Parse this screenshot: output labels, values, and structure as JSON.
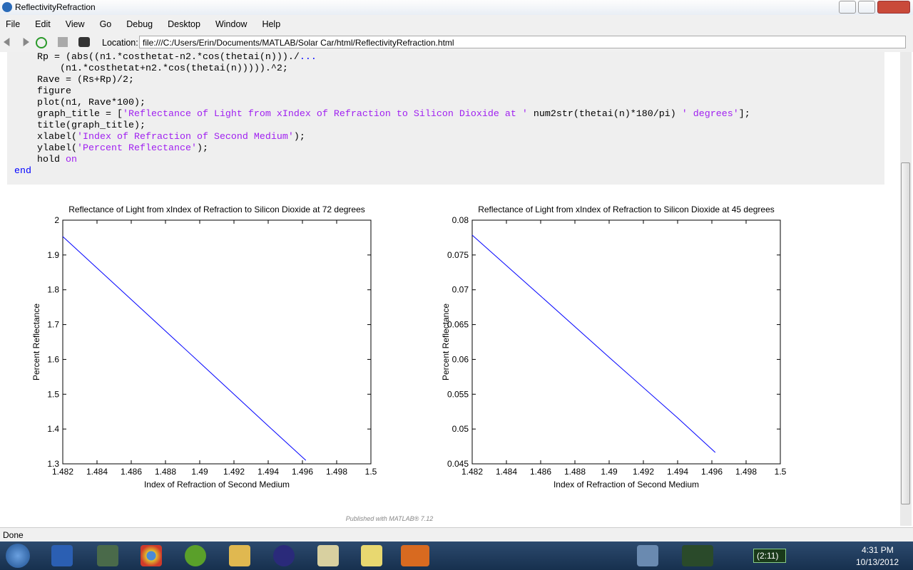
{
  "window": {
    "title": "ReflectivityRefraction"
  },
  "menu": [
    "File",
    "Edit",
    "View",
    "Go",
    "Debug",
    "Desktop",
    "Window",
    "Help"
  ],
  "toolbar": {
    "location_label": "Location:",
    "url": "file:///C:/Users/Erin/Documents/MATLAB/Solar Car/html/ReflectivityRefraction.html"
  },
  "code": [
    [
      {
        "text": "    Rp = (abs((n1.*costhetat-n2.*cos(thetai(n)))./"
      },
      {
        "text": "...",
        "color": "#0000ff"
      }
    ],
    [
      {
        "text": "        (n1.*costhetat+n2.*cos(thetai(n))))).^2;"
      }
    ],
    [
      {
        "text": "    Rave = (Rs+Rp)/2;"
      }
    ],
    [
      {
        "text": "    figure"
      }
    ],
    [
      {
        "text": "    plot(n1, Rave*100);"
      }
    ],
    [
      {
        "text": "    graph_title = ["
      },
      {
        "text": "'Reflectance of Light from xIndex of Refraction to Silicon Dioxide at '",
        "color": "#a020f0"
      },
      {
        "text": " num2str(thetai(n)*180/pi) "
      },
      {
        "text": "' degrees'",
        "color": "#a020f0"
      },
      {
        "text": "];"
      }
    ],
    [
      {
        "text": "    title(graph_title);"
      }
    ],
    [
      {
        "text": "    xlabel("
      },
      {
        "text": "'Index of Refraction of Second Medium'",
        "color": "#a020f0"
      },
      {
        "text": ");"
      }
    ],
    [
      {
        "text": "    ylabel("
      },
      {
        "text": "'Percent Reflectance'",
        "color": "#a020f0"
      },
      {
        "text": ");"
      }
    ],
    [
      {
        "text": "    hold "
      },
      {
        "text": "on",
        "color": "#a020f0"
      }
    ],
    [
      {
        "text": "end",
        "color": "#0000ff"
      }
    ]
  ],
  "chart_data": [
    {
      "type": "line",
      "title": "Reflectance of Light from xIndex of Refraction to Silicon Dioxide at 72 degrees",
      "x_label": "Index of Refraction of Second Medium",
      "y_label": "Percent Reflectance",
      "x": [
        1.482,
        1.486,
        1.49,
        1.494,
        1.4962
      ],
      "values": [
        1.953,
        1.772,
        1.591,
        1.409,
        1.31
      ],
      "color": "#0000ff",
      "xlim": [
        1.482,
        1.5
      ],
      "xticks": [
        1.482,
        1.484,
        1.486,
        1.488,
        1.49,
        1.492,
        1.494,
        1.496,
        1.498,
        1.5
      ],
      "ylim": [
        1.3,
        2
      ],
      "yticks": [
        1.3,
        1.4,
        1.5,
        1.6,
        1.7,
        1.8,
        1.9,
        2
      ]
    },
    {
      "type": "line",
      "title": "Reflectance of Light from xIndex of Refraction to Silicon Dioxide at 45 degrees",
      "x_label": "Index of Refraction of Second Medium",
      "y_label": "Percent Reflectance",
      "x": [
        1.482,
        1.486,
        1.49,
        1.494,
        1.4962
      ],
      "values": [
        0.07785,
        0.0691,
        0.0603,
        0.0516,
        0.04664
      ],
      "color": "#0000ff",
      "xlim": [
        1.482,
        1.5
      ],
      "xticks": [
        1.482,
        1.484,
        1.486,
        1.488,
        1.49,
        1.492,
        1.494,
        1.496,
        1.498,
        1.5
      ],
      "ylim": [
        0.045,
        0.08
      ],
      "yticks": [
        0.045,
        0.05,
        0.055,
        0.06,
        0.065,
        0.07,
        0.075,
        0.08
      ]
    }
  ],
  "footer": "Published with MATLAB® 7.12",
  "status": "Done",
  "taskbar": {
    "battery": "(2:11)",
    "time": "4:31 PM",
    "date": "10/13/2012"
  }
}
